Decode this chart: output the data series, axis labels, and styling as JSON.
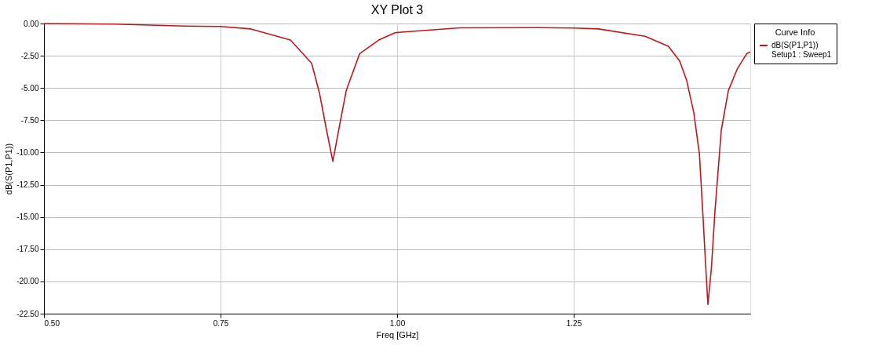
{
  "chart_data": {
    "type": "line",
    "title": "XY Plot 3",
    "xlabel": "Freq [GHz]",
    "ylabel": "dB(S(P1,P1))",
    "legend_title": "Curve Info",
    "xlim": [
      0.5,
      1.5
    ],
    "ylim": [
      -22.5,
      0
    ],
    "xticks": [
      {
        "value": 0.5,
        "label": "0.50"
      },
      {
        "value": 0.75,
        "label": "0.75"
      },
      {
        "value": 1.0,
        "label": "1.00"
      },
      {
        "value": 1.25,
        "label": "1.25"
      }
    ],
    "yticks": [
      {
        "value": 0,
        "label": "0.00"
      },
      {
        "value": -2.5,
        "label": "-2.50"
      },
      {
        "value": -5,
        "label": "-5.00"
      },
      {
        "value": -7.5,
        "label": "-7.50"
      },
      {
        "value": -10,
        "label": "-10.00"
      },
      {
        "value": -12.5,
        "label": "-12.50"
      },
      {
        "value": -15,
        "label": "-15.00"
      },
      {
        "value": -17.5,
        "label": "-17.50"
      },
      {
        "value": -20,
        "label": "-20.00"
      },
      {
        "value": -22.5,
        "label": "-22.50"
      }
    ],
    "grid": true,
    "legend": "top right",
    "line_style": "solid",
    "marker": "none",
    "series": [
      {
        "name": "dB(S(P1,P1))\nSetup1 : Sweep1",
        "color": "#c0161b",
        "x": [
          0.5,
          0.6,
          0.7,
          0.75,
          0.793,
          0.849,
          0.879,
          0.89,
          0.9,
          0.909,
          0.918,
          0.928,
          0.947,
          0.974,
          0.997,
          1.089,
          1.2,
          1.25,
          1.285,
          1.351,
          1.384,
          1.4,
          1.41,
          1.42,
          1.428,
          1.433,
          1.437,
          1.44,
          1.445,
          1.45,
          1.459,
          1.469,
          1.482,
          1.495,
          1.5
        ],
        "values": [
          0,
          -0.05,
          -0.2,
          -0.23,
          -0.42,
          -1.28,
          -3.09,
          -5.38,
          -8.24,
          -10.69,
          -8.05,
          -5.19,
          -2.33,
          -1.28,
          -0.71,
          -0.33,
          -0.32,
          -0.35,
          -0.42,
          -0.99,
          -1.76,
          -2.9,
          -4.43,
          -6.91,
          -10.13,
          -14.92,
          -18.93,
          -21.79,
          -18.93,
          -14.54,
          -8.24,
          -5.19,
          -3.47,
          -2.33,
          -2.2
        ]
      }
    ]
  }
}
